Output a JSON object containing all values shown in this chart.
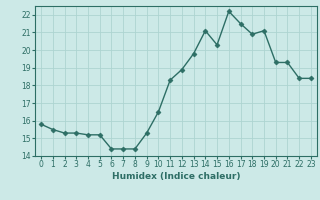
{
  "x": [
    0,
    1,
    2,
    3,
    4,
    5,
    6,
    7,
    8,
    9,
    10,
    11,
    12,
    13,
    14,
    15,
    16,
    17,
    18,
    19,
    20,
    21,
    22,
    23
  ],
  "y": [
    15.8,
    15.5,
    15.3,
    15.3,
    15.2,
    15.2,
    14.4,
    14.4,
    14.4,
    15.3,
    16.5,
    18.3,
    18.9,
    19.8,
    21.1,
    20.3,
    22.2,
    21.5,
    20.9,
    21.1,
    19.3,
    19.3,
    18.4,
    18.4
  ],
  "line_color": "#2d6e65",
  "marker": "D",
  "marker_size": 2.5,
  "bg_color": "#cce9e7",
  "grid_color": "#add4d1",
  "xlabel": "Humidex (Indice chaleur)",
  "ylabel": "",
  "ylim": [
    14,
    22.5
  ],
  "yticks": [
    14,
    15,
    16,
    17,
    18,
    19,
    20,
    21,
    22
  ],
  "xlim": [
    -0.5,
    23.5
  ],
  "xticks": [
    0,
    1,
    2,
    3,
    4,
    5,
    6,
    7,
    8,
    9,
    10,
    11,
    12,
    13,
    14,
    15,
    16,
    17,
    18,
    19,
    20,
    21,
    22,
    23
  ],
  "axis_fontsize": 6.5,
  "tick_fontsize": 5.5
}
